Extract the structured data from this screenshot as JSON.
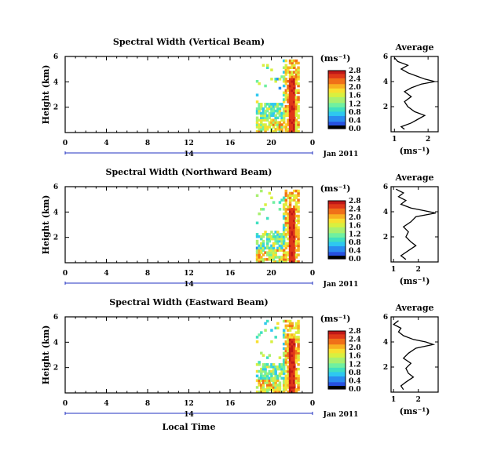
{
  "units_label": "(ms⁻¹)",
  "avg_units_label": "(ms⁻¹)",
  "date_label": "Jan 2011",
  "day_label": "14",
  "xlabel": "Local Time",
  "ylabel": "Height (km)",
  "avg_title": "Average",
  "colorbar_colors": [
    "#000000",
    "#3a1c8c",
    "#2750e0",
    "#2a8cf0",
    "#2ec8f0",
    "#40e0c0",
    "#70f0a0",
    "#a8f070",
    "#d8f040",
    "#f8e030",
    "#f8b020",
    "#f07018",
    "#e03818",
    "#c01818"
  ],
  "chart_data": [
    {
      "type": "heatmap",
      "title": "Spectral Width (Vertical Beam)",
      "xlabel": "Local Time",
      "ylabel": "Height (km)",
      "xlim": [
        0,
        24
      ],
      "ylim": [
        0,
        6
      ],
      "x_ticks": [
        "0",
        "4",
        "8",
        "12",
        "16",
        "20",
        "0"
      ],
      "y_ticks": [
        "2",
        "4",
        "6"
      ],
      "colorbar": {
        "label": "(ms⁻¹)",
        "ticks": [
          "0.0",
          "0.4",
          "0.8",
          "1.2",
          "1.6",
          "2.0",
          "2.4",
          "2.8"
        ]
      },
      "data_extent": {
        "x": [
          18.5,
          22.5
        ],
        "y": [
          0,
          5.6
        ]
      },
      "average": {
        "title": "Average",
        "xlabel": "(ms⁻¹)",
        "x_ticks": [
          "1",
          "2"
        ],
        "xlim": [
          0.9,
          2.3
        ],
        "y_ticks": [
          "2",
          "4",
          "6"
        ],
        "profile": [
          [
            1.3,
            0.2
          ],
          [
            1.2,
            0.4
          ],
          [
            1.5,
            0.7
          ],
          [
            1.7,
            1.0
          ],
          [
            1.9,
            1.3
          ],
          [
            1.6,
            1.6
          ],
          [
            1.4,
            2.0
          ],
          [
            1.3,
            2.4
          ],
          [
            1.5,
            2.8
          ],
          [
            1.3,
            3.2
          ],
          [
            1.5,
            3.5
          ],
          [
            1.8,
            3.8
          ],
          [
            2.2,
            4.0
          ],
          [
            1.9,
            4.2
          ],
          [
            1.7,
            4.4
          ],
          [
            1.4,
            4.7
          ],
          [
            1.2,
            5.0
          ],
          [
            1.4,
            5.3
          ],
          [
            1.1,
            5.6
          ],
          [
            1.0,
            5.9
          ]
        ]
      }
    },
    {
      "type": "heatmap",
      "title": "Spectral Width (Northward Beam)",
      "xlabel": "Local Time",
      "ylabel": "Height (km)",
      "xlim": [
        0,
        24
      ],
      "ylim": [
        0,
        6
      ],
      "x_ticks": [
        "0",
        "4",
        "8",
        "12",
        "16",
        "20",
        "0"
      ],
      "y_ticks": [
        "2",
        "4",
        "6"
      ],
      "colorbar": {
        "label": "(ms⁻¹)",
        "ticks": [
          "0.0",
          "0.4",
          "0.8",
          "1.2",
          "1.6",
          "2.0",
          "2.4",
          "2.8"
        ]
      },
      "data_extent": {
        "x": [
          18.5,
          22.5
        ],
        "y": [
          0,
          5.6
        ]
      },
      "average": {
        "title": "Average",
        "xlabel": "(ms⁻¹)",
        "x_ticks": [
          "1",
          "2"
        ],
        "xlim": [
          0.9,
          2.8
        ],
        "y_ticks": [
          "2",
          "4",
          "6"
        ],
        "profile": [
          [
            1.5,
            0.2
          ],
          [
            1.3,
            0.5
          ],
          [
            1.6,
            0.9
          ],
          [
            1.9,
            1.3
          ],
          [
            1.7,
            1.6
          ],
          [
            1.5,
            2.0
          ],
          [
            1.6,
            2.4
          ],
          [
            1.4,
            2.8
          ],
          [
            1.7,
            3.2
          ],
          [
            1.9,
            3.6
          ],
          [
            2.7,
            3.9
          ],
          [
            2.2,
            4.1
          ],
          [
            1.7,
            4.3
          ],
          [
            1.3,
            4.6
          ],
          [
            1.5,
            4.9
          ],
          [
            1.2,
            5.2
          ],
          [
            1.4,
            5.5
          ],
          [
            1.1,
            5.8
          ]
        ]
      }
    },
    {
      "type": "heatmap",
      "title": "Spectral Width (Eastward Beam)",
      "xlabel": "Local Time",
      "ylabel": "Height (km)",
      "xlim": [
        0,
        24
      ],
      "ylim": [
        0,
        6
      ],
      "x_ticks": [
        "0",
        "4",
        "8",
        "12",
        "16",
        "20",
        "0"
      ],
      "y_ticks": [
        "2",
        "4",
        "6"
      ],
      "colorbar": {
        "label": "(ms⁻¹)",
        "ticks": [
          "0.0",
          "0.4",
          "0.8",
          "1.2",
          "1.6",
          "2.0",
          "2.4",
          "2.8"
        ]
      },
      "data_extent": {
        "x": [
          18.5,
          22.5
        ],
        "y": [
          0,
          5.6
        ]
      },
      "average": {
        "title": "Average",
        "xlabel": "(ms⁻¹)",
        "x_ticks": [
          "1",
          "2"
        ],
        "xlim": [
          0.9,
          2.8
        ],
        "y_ticks": [
          "2",
          "4",
          "6"
        ],
        "profile": [
          [
            1.4,
            0.2
          ],
          [
            1.3,
            0.5
          ],
          [
            1.5,
            0.8
          ],
          [
            1.8,
            1.2
          ],
          [
            1.6,
            1.5
          ],
          [
            1.5,
            1.9
          ],
          [
            1.7,
            2.3
          ],
          [
            1.4,
            2.7
          ],
          [
            1.6,
            3.1
          ],
          [
            1.9,
            3.5
          ],
          [
            2.6,
            3.8
          ],
          [
            2.3,
            4.0
          ],
          [
            1.8,
            4.2
          ],
          [
            1.4,
            4.5
          ],
          [
            1.2,
            4.8
          ],
          [
            1.3,
            5.1
          ],
          [
            1.0,
            5.4
          ],
          [
            1.2,
            5.7
          ]
        ]
      }
    }
  ]
}
